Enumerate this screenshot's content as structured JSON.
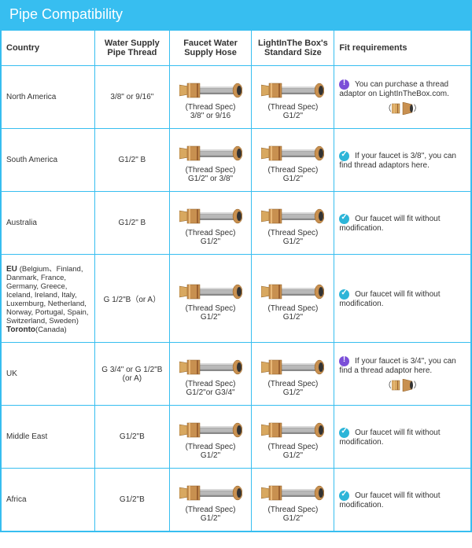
{
  "title": "Pipe Compatibility",
  "columns": {
    "country": "Country",
    "thread": "Water Supply Pipe Thread",
    "hose": "Faucet Water Supply Hose",
    "std": "LightInThe Box's Standard Size",
    "fit": "Fit requirements"
  },
  "spec_label": "(Thread Spec)",
  "rows": [
    {
      "country": "North America",
      "thread": "3/8\" or 9/16\"",
      "hose_spec": "3/8\" or 9/16",
      "std_spec": "G1/2\"",
      "icon": "info",
      "fit": "You can purchase a thread adaptor on LightInTheBox.com.",
      "has_adaptor": true
    },
    {
      "country": "South America",
      "thread": "G1/2\" B",
      "hose_spec": "G1/2\" or 3/8\"",
      "std_spec": "G1/2\"",
      "icon": "check",
      "fit": "If your faucet is 3/8'', you can find thread adaptors here.",
      "has_adaptor": false
    },
    {
      "country": "Australia",
      "thread": "G1/2\" B",
      "hose_spec": "G1/2\"",
      "std_spec": "G1/2\"",
      "icon": "check",
      "fit": "Our faucet will fit without modification.",
      "has_adaptor": false
    },
    {
      "country_eu": "EU",
      "country_sub": "(Belgium、Finland, Danmark, France, Germany, Greece, Iceland, Ireland, Italy, Luxemburg, Netherland, Norway, Portugal, Spain, Switzerland, Sweden)",
      "country_extra": "Toronto",
      "country_extra2": "(Canada)",
      "thread": "G 1/2\"B（or A）",
      "hose_spec": "G1/2\"",
      "std_spec": "G1/2\"",
      "icon": "check",
      "fit": "Our faucet will fit without modification.",
      "has_adaptor": false
    },
    {
      "country": "UK",
      "thread": "G 3/4\" or G 1/2\"B (or A)",
      "hose_spec": "G1/2\"or G3/4\"",
      "std_spec": "G1/2\"",
      "icon": "info",
      "fit": "If your faucet is 3/4\", you can find a thread adaptor here.",
      "has_adaptor": true
    },
    {
      "country": "Middle East",
      "thread": "G1/2\"B",
      "hose_spec": "G1/2\"",
      "std_spec": "G1/2\"",
      "icon": "check",
      "fit": "Our faucet will fit without modification.",
      "has_adaptor": false
    },
    {
      "country": "Africa",
      "thread": "G1/2\"B",
      "hose_spec": "G1/2\"",
      "std_spec": "G1/2\"",
      "icon": "check",
      "fit": "Our faucet will fit without modification.",
      "has_adaptor": false
    }
  ],
  "styling": {
    "header_bg": "#37bef0",
    "border_color": "#37bef0",
    "check_color": "#2db5d8",
    "info_color": "#7b4fd8",
    "brass_light": "#e8b878",
    "brass_dark": "#b87830",
    "hose_color": "#b8b8b8"
  }
}
